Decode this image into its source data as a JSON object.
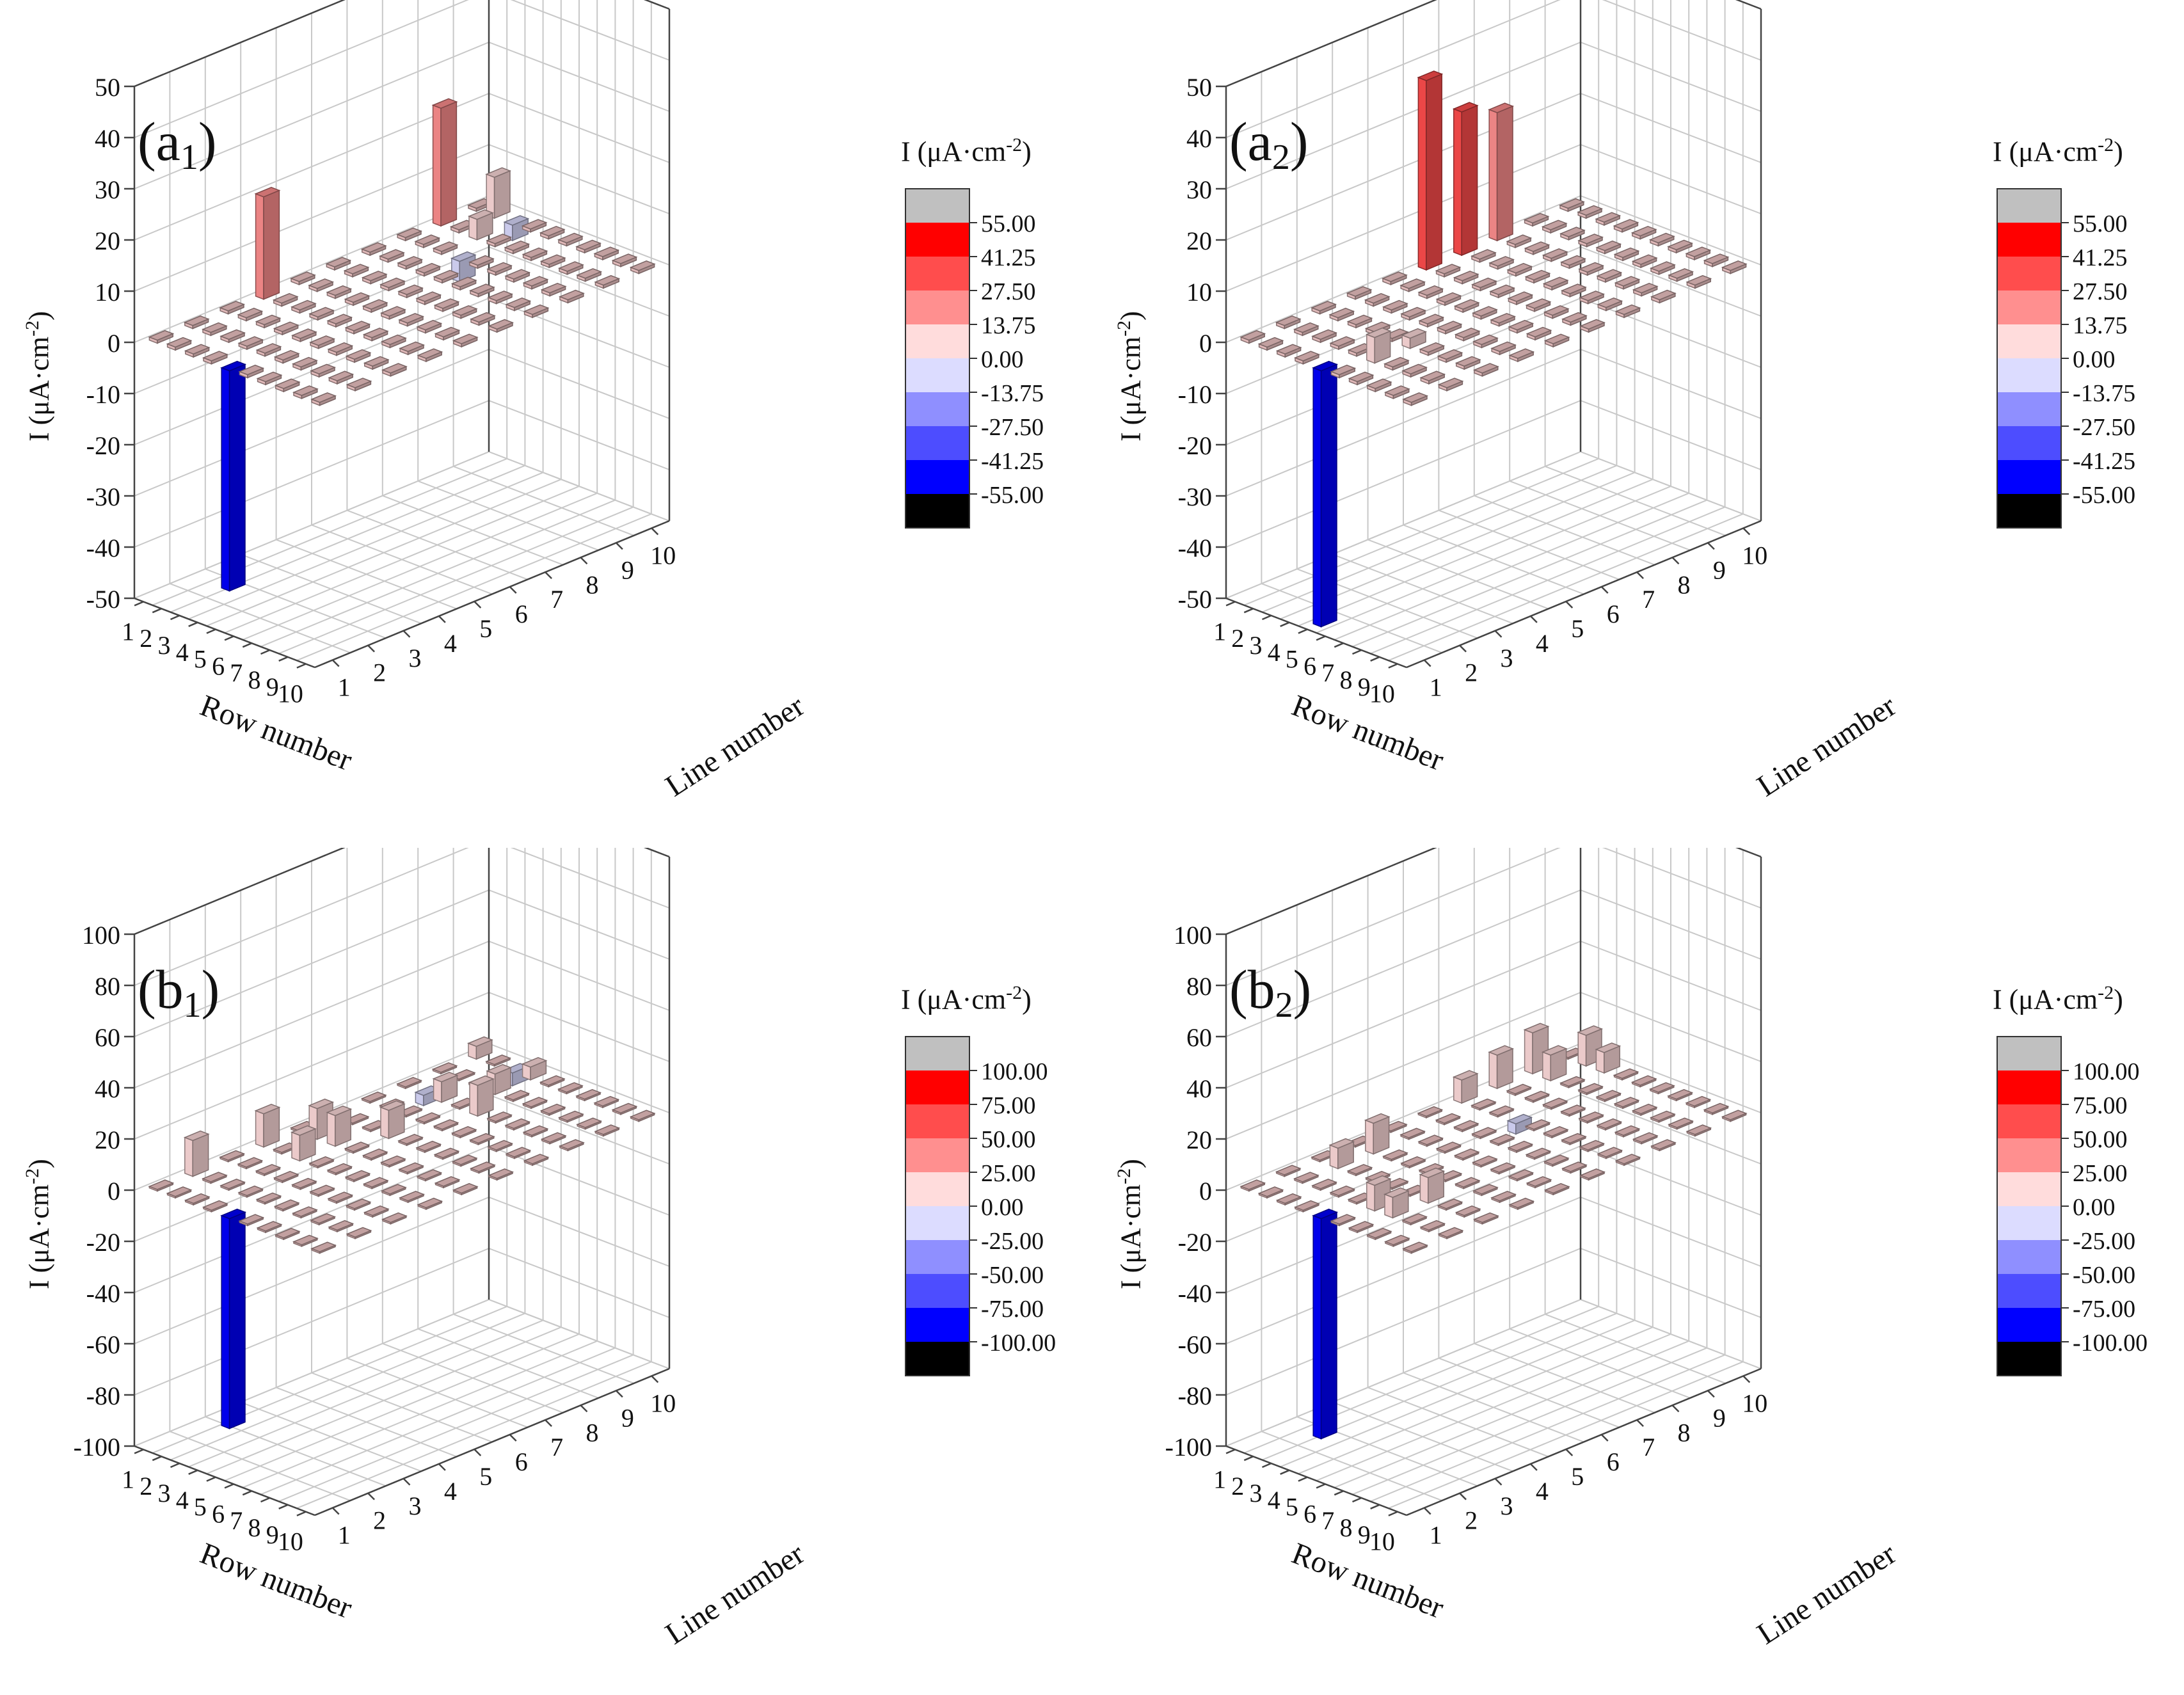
{
  "chart_data": [
    {
      "type": "bar3d",
      "panel_label": "a",
      "panel_subscript": "1",
      "zlabel_prefix": "I (μA·cm",
      "zlabel_exponent": "-2",
      "zlabel_suffix": ")",
      "xlabel": "Row number",
      "ylabel": "Line number",
      "x_ticks": [
        "1",
        "2",
        "3",
        "4",
        "5",
        "6",
        "7",
        "8",
        "9",
        "10"
      ],
      "y_ticks": [
        "1",
        "2",
        "3",
        "4",
        "5",
        "6",
        "7",
        "8",
        "9",
        "10"
      ],
      "zlim": [
        -50,
        50
      ],
      "z_ticks": [
        "50",
        "40",
        "30",
        "20",
        "10",
        "0",
        "-10",
        "-20",
        "-30",
        "-40",
        "-50"
      ],
      "colorbar": {
        "title_prefix": "I (μA·cm",
        "title_exponent": "-2",
        "title_suffix": ")",
        "colors": [
          "#c0c0c0",
          "#ff0000",
          "#ff4d4d",
          "#ff8f8f",
          "#ffdcdc",
          "#dcdcff",
          "#8f8fff",
          "#4d4dff",
          "#0000ff",
          "#000000"
        ],
        "labels": [
          "55.00",
          "41.25",
          "27.50",
          "13.75",
          "0.00",
          "-13.75",
          "-27.50",
          "-41.25",
          "-55.00"
        ]
      },
      "bars": [
        {
          "row": 1,
          "line": 4,
          "value": 20
        },
        {
          "row": 5,
          "line": 1,
          "value": -43
        },
        {
          "row": 1,
          "line": 9,
          "value": 23
        },
        {
          "row": 2,
          "line": 10,
          "value": 8
        },
        {
          "row": 3,
          "line": 9,
          "value": 4
        },
        {
          "row": 4,
          "line": 8,
          "value": -4
        },
        {
          "row": 3,
          "line": 10,
          "value": -3
        }
      ]
    },
    {
      "type": "bar3d",
      "panel_label": "a",
      "panel_subscript": "2",
      "zlabel_prefix": "I (μA·cm",
      "zlabel_exponent": "-2",
      "zlabel_suffix": ")",
      "xlabel": "Row number",
      "ylabel": "Line number",
      "x_ticks": [
        "1",
        "2",
        "3",
        "4",
        "5",
        "6",
        "7",
        "8",
        "9",
        "10"
      ],
      "y_ticks": [
        "1",
        "2",
        "3",
        "4",
        "5",
        "6",
        "7",
        "8",
        "9",
        "10"
      ],
      "zlim": [
        -50,
        50
      ],
      "z_ticks": [
        "50",
        "40",
        "30",
        "20",
        "10",
        "0",
        "-10",
        "-20",
        "-30",
        "-40",
        "-50"
      ],
      "colorbar": {
        "title_prefix": "I (μA·cm",
        "title_exponent": "-2",
        "title_suffix": ")",
        "colors": [
          "#c0c0c0",
          "#ff0000",
          "#ff4d4d",
          "#ff8f8f",
          "#ffdcdc",
          "#dcdcff",
          "#8f8fff",
          "#4d4dff",
          "#0000ff",
          "#000000"
        ],
        "labels": [
          "55.00",
          "41.25",
          "27.50",
          "13.75",
          "0.00",
          "-13.75",
          "-27.50",
          "-41.25",
          "-55.00"
        ]
      },
      "bars": [
        {
          "row": 1,
          "line": 6,
          "value": 37
        },
        {
          "row": 1,
          "line": 7,
          "value": 28
        },
        {
          "row": 1,
          "line": 8,
          "value": 25
        },
        {
          "row": 5,
          "line": 1,
          "value": -50
        },
        {
          "row": 6,
          "line": 2,
          "value": 5
        },
        {
          "row": 6,
          "line": 3,
          "value": 2
        }
      ]
    },
    {
      "type": "bar3d",
      "panel_label": "b",
      "panel_subscript": "1",
      "zlabel_prefix": "I (μA·cm",
      "zlabel_exponent": "-2",
      "zlabel_suffix": ")",
      "xlabel": "Row number",
      "ylabel": "Line number",
      "x_ticks": [
        "1",
        "2",
        "3",
        "4",
        "5",
        "6",
        "7",
        "8",
        "9",
        "10"
      ],
      "y_ticks": [
        "1",
        "2",
        "3",
        "4",
        "5",
        "6",
        "7",
        "8",
        "9",
        "10"
      ],
      "zlim": [
        -100,
        100
      ],
      "z_ticks": [
        "100",
        "80",
        "60",
        "40",
        "20",
        "0",
        "-20",
        "-40",
        "-60",
        "-80",
        "-100"
      ],
      "colorbar": {
        "title_prefix": "I (μA·cm",
        "title_exponent": "-2",
        "title_suffix": ")",
        "colors": [
          "#c0c0c0",
          "#ff0000",
          "#ff4d4d",
          "#ff8f8f",
          "#ffdcdc",
          "#dcdcff",
          "#8f8fff",
          "#4d4dff",
          "#0000ff",
          "#000000"
        ],
        "labels": [
          "100.00",
          "75.00",
          "50.00",
          "25.00",
          "0.00",
          "-25.00",
          "-50.00",
          "-75.00",
          "-100.00"
        ]
      },
      "bars": [
        {
          "row": 1,
          "line": 2,
          "value": 14
        },
        {
          "row": 1,
          "line": 4,
          "value": 13
        },
        {
          "row": 2,
          "line": 5,
          "value": 12
        },
        {
          "row": 3,
          "line": 5,
          "value": 12
        },
        {
          "row": 3,
          "line": 4,
          "value": 10
        },
        {
          "row": 4,
          "line": 6,
          "value": 11
        },
        {
          "row": 5,
          "line": 1,
          "value": -82
        },
        {
          "row": 3,
          "line": 8,
          "value": 8
        },
        {
          "row": 5,
          "line": 8,
          "value": 12
        },
        {
          "row": 4,
          "line": 9,
          "value": 8
        },
        {
          "row": 4,
          "line": 10,
          "value": 5
        },
        {
          "row": 3,
          "line": 10,
          "value": -5
        },
        {
          "row": 1,
          "line": 10,
          "value": 5
        },
        {
          "row": 2,
          "line": 8,
          "value": -4
        }
      ]
    },
    {
      "type": "bar3d",
      "panel_label": "b",
      "panel_subscript": "2",
      "zlabel_prefix": "I (μA·cm",
      "zlabel_exponent": "-2",
      "zlabel_suffix": ")",
      "xlabel": "Row number",
      "ylabel": "Line number",
      "x_ticks": [
        "1",
        "2",
        "3",
        "4",
        "5",
        "6",
        "7",
        "8",
        "9",
        "10"
      ],
      "y_ticks": [
        "1",
        "2",
        "3",
        "4",
        "5",
        "6",
        "7",
        "8",
        "9",
        "10"
      ],
      "zlim": [
        -100,
        100
      ],
      "z_ticks": [
        "100",
        "80",
        "60",
        "40",
        "20",
        "0",
        "-20",
        "-40",
        "-60",
        "-80",
        "-100"
      ],
      "colorbar": {
        "title_prefix": "I (μA·cm",
        "title_exponent": "-2",
        "title_suffix": ")",
        "colors": [
          "#c0c0c0",
          "#ff0000",
          "#ff4d4d",
          "#ff8f8f",
          "#ffdcdc",
          "#dcdcff",
          "#8f8fff",
          "#4d4dff",
          "#0000ff",
          "#000000"
        ],
        "labels": [
          "100.00",
          "75.00",
          "50.00",
          "25.00",
          "0.00",
          "-25.00",
          "-50.00",
          "-75.00",
          "-100.00"
        ]
      },
      "bars": [
        {
          "row": 1,
          "line": 7,
          "value": 9
        },
        {
          "row": 1,
          "line": 8,
          "value": 13
        },
        {
          "row": 1,
          "line": 9,
          "value": 16
        },
        {
          "row": 2,
          "line": 9,
          "value": 10
        },
        {
          "row": 2,
          "line": 10,
          "value": 12
        },
        {
          "row": 3,
          "line": 10,
          "value": 8
        },
        {
          "row": 2,
          "line": 3,
          "value": 8
        },
        {
          "row": 2,
          "line": 4,
          "value": 12
        },
        {
          "row": 5,
          "line": 1,
          "value": -86
        },
        {
          "row": 4,
          "line": 7,
          "value": -4
        },
        {
          "row": 6,
          "line": 2,
          "value": 10
        },
        {
          "row": 7,
          "line": 2,
          "value": 8
        },
        {
          "row": 7,
          "line": 3,
          "value": 10
        }
      ]
    }
  ]
}
